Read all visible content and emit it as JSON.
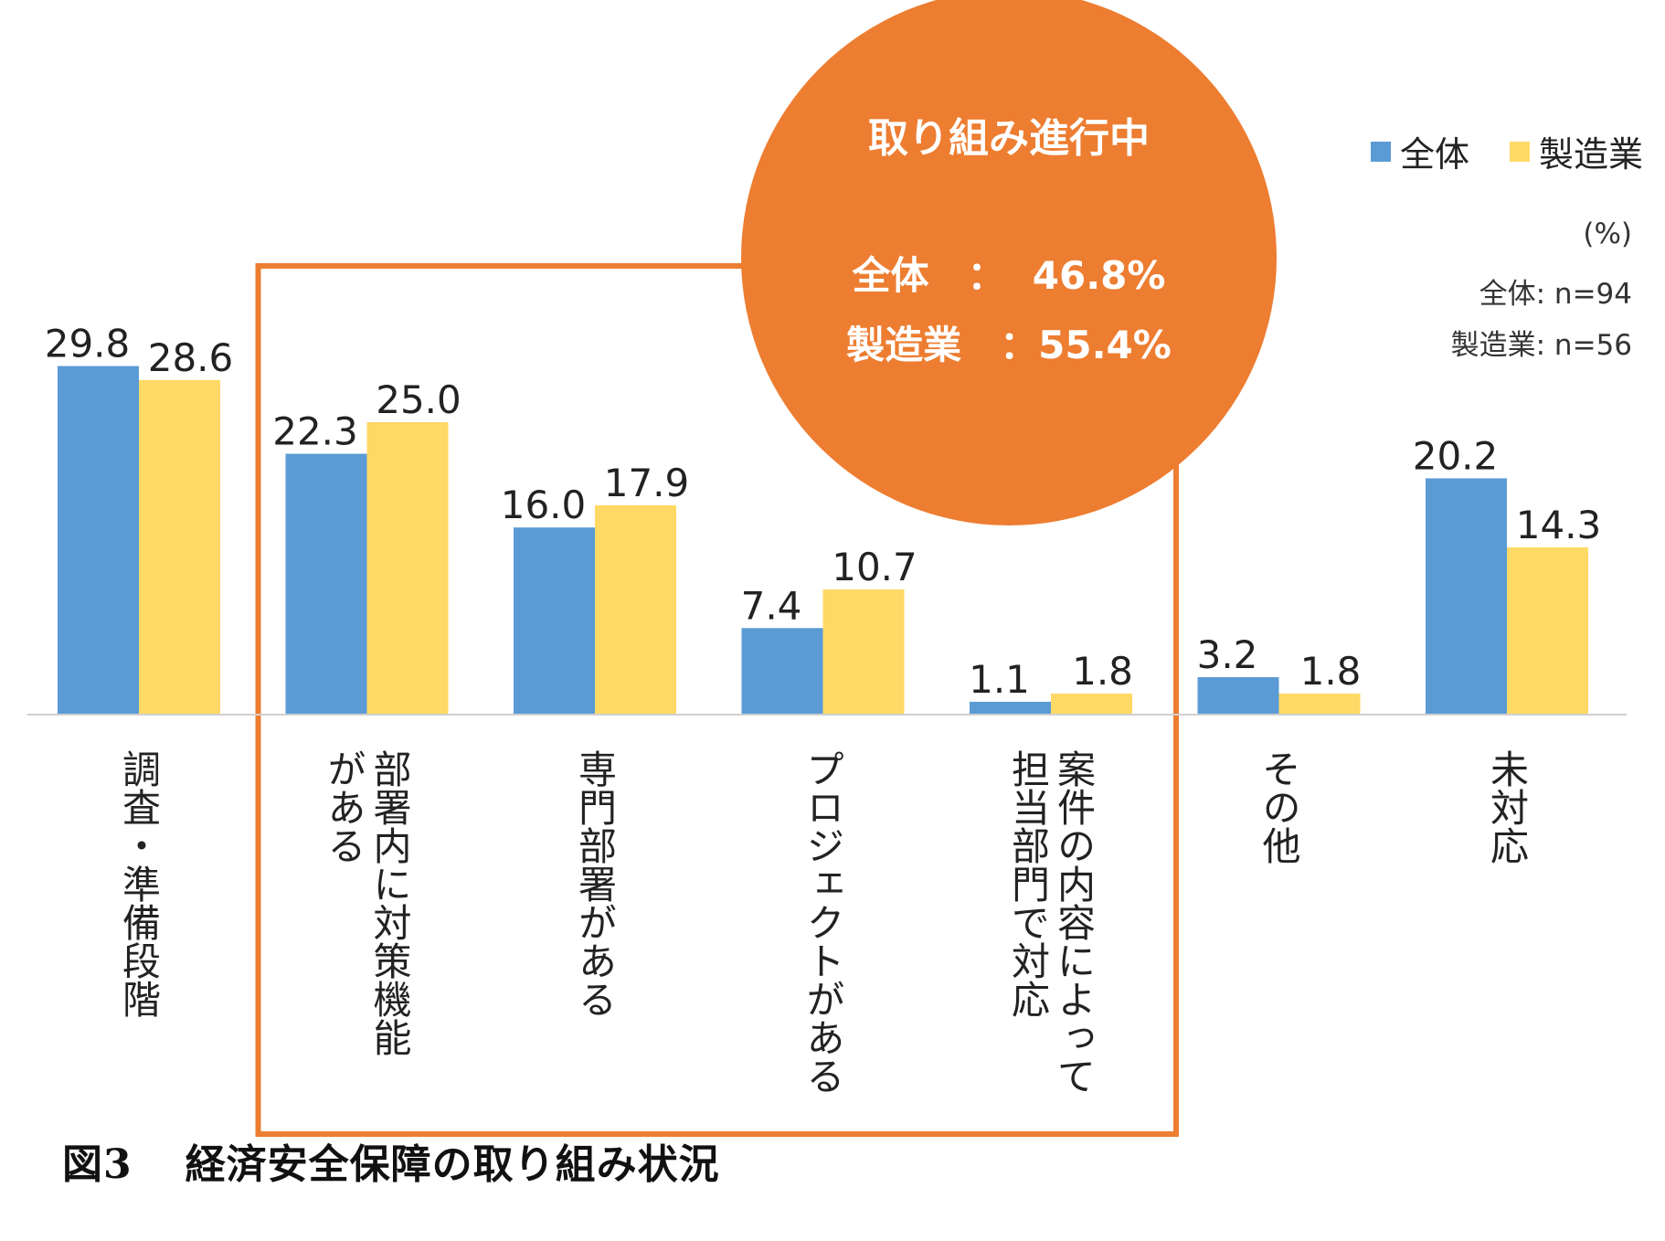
{
  "caption": {
    "label": "図3",
    "text": "経済安全保障の取り組み状況"
  },
  "callout": {
    "title": "取り組み進行中",
    "line1": "全体　：  46.8%",
    "line2": "製造業　：55.4%",
    "color": "#ED7D31"
  },
  "notes": {
    "unit": "(%)",
    "n_all": "全体: n=94",
    "n_mfg": "製造業: n=56"
  },
  "chart_data": {
    "type": "bar",
    "title": "経済安全保障の取り組み状況",
    "unit": "%",
    "ylim": [
      0,
      35
    ],
    "grid": false,
    "legend_position": "top-right",
    "categories": [
      "調査・準備段階",
      "部署内に対策機能がある",
      "専門部署がある",
      "プロジェクトがある",
      "案件の内容によって担当部門で対応",
      "その他",
      "未対応"
    ],
    "category_lines": [
      [
        "調査・準備段階"
      ],
      [
        "部署内に対策機能",
        "がある"
      ],
      [
        "専門部署がある"
      ],
      [
        "プロジェクトがある"
      ],
      [
        "案件の内容によって",
        "担当部門で対応"
      ],
      [
        "その他"
      ],
      [
        "未対応"
      ]
    ],
    "series": [
      {
        "name": "全体",
        "color": "#5B9BD5",
        "values": [
          29.8,
          22.3,
          16.0,
          7.4,
          1.1,
          3.2,
          20.2
        ],
        "labels": [
          "29.8",
          "22.3",
          "16.0",
          "7.4",
          "1.1",
          "3.2",
          "20.2"
        ]
      },
      {
        "name": "製造業",
        "color": "#FFD966",
        "values": [
          28.6,
          25.0,
          17.9,
          10.7,
          1.8,
          1.8,
          14.3
        ],
        "labels": [
          "28.6",
          "25.0",
          "17.9",
          "10.7",
          "1.8",
          "1.8",
          "14.3"
        ]
      }
    ],
    "highlight": {
      "categories_from": 1,
      "categories_to": 4,
      "color": "#ED7D31"
    }
  }
}
